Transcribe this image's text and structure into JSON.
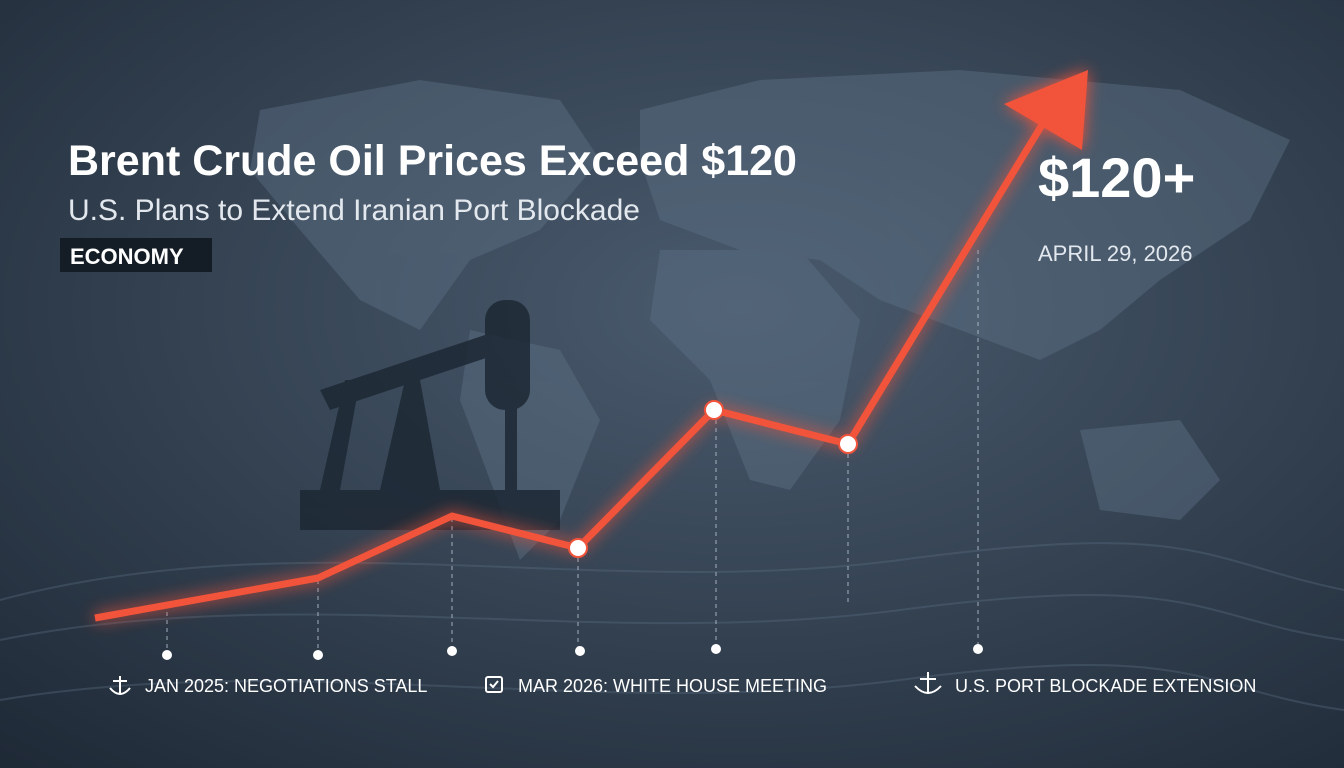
{
  "header": {
    "title": "Brent Crude Oil Prices Exceed $120",
    "subtitle": "U.S. Plans to Extend Iranian Port Blockade",
    "tag": "ECONOMY"
  },
  "highlight": {
    "price": "$120+",
    "date": "APRIL 29, 2026"
  },
  "timeline": {
    "events": [
      "JAN 2025: NEGOTIATIONS STALL",
      "MAR 2026: WHITE HOUSE MEETING",
      "U.S. PORT BLOCKADE EXTENSION"
    ]
  }
}
